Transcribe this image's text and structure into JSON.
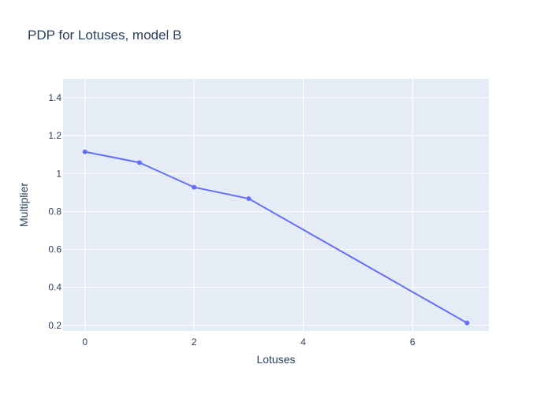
{
  "chart_data": {
    "type": "line",
    "title": "PDP for Lotuses, model B",
    "xlabel": "Lotuses",
    "ylabel": "Multiplier",
    "x": [
      0,
      1,
      2,
      3,
      7
    ],
    "series": [
      {
        "values": [
          1.115,
          1.058,
          0.928,
          0.868,
          0.212
        ]
      }
    ],
    "xlim": [
      -0.4,
      7.4
    ],
    "ylim": [
      0.17,
      1.5
    ],
    "xticks": [
      0,
      2,
      4,
      6
    ],
    "xtick_labels": [
      "0",
      "2",
      "4",
      "6"
    ],
    "yticks": [
      0.2,
      0.4,
      0.6,
      0.8,
      1.0,
      1.2,
      1.4
    ],
    "ytick_labels": [
      "0.2",
      "0.4",
      "0.6",
      "0.8",
      "1",
      "1.2",
      "1.4"
    ],
    "grid": true,
    "colors": {
      "line": "#636efa",
      "plot_bg": "#e5ecf6",
      "grid": "#ffffff",
      "text": "#2a3f5f"
    }
  }
}
